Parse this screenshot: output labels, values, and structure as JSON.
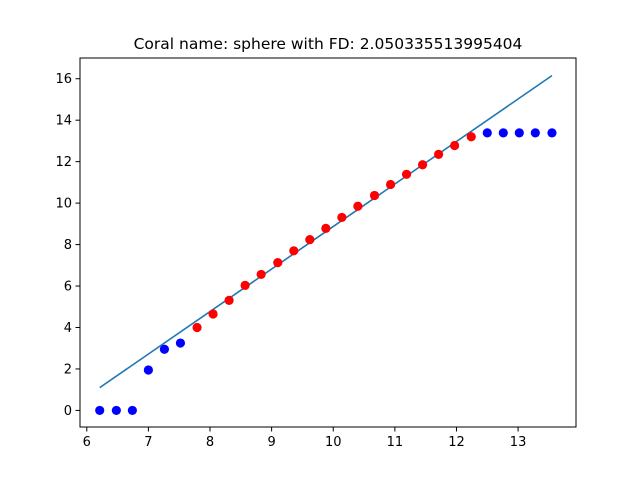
{
  "chart_data": {
    "type": "scatter",
    "title": "Coral name: sphere with FD: 2.050335513995404",
    "xlabel": "",
    "ylabel": "",
    "xlim": [
      5.89,
      13.94
    ],
    "ylim": [
      -0.8,
      17.0
    ],
    "xticks": [
      6,
      7,
      8,
      9,
      10,
      11,
      12,
      13
    ],
    "yticks": [
      0,
      2,
      4,
      6,
      8,
      10,
      12,
      14,
      16
    ],
    "grid": false,
    "colors": {
      "excluded_points": "#0000ff",
      "fitted_points": "#ff0000",
      "fit_line": "#1f77b4",
      "axes": "#000000"
    },
    "series": [
      {
        "kind": "points",
        "color": "#0000ff",
        "x": [
          6.21,
          6.48,
          6.74,
          7.0,
          7.26,
          7.52,
          12.5,
          12.76,
          13.02,
          13.28,
          13.55
        ],
        "y": [
          0.0,
          0.0,
          0.0,
          1.95,
          2.95,
          3.25,
          13.39,
          13.39,
          13.39,
          13.39,
          13.39
        ]
      },
      {
        "kind": "points",
        "color": "#ff0000",
        "x": [
          7.79,
          8.05,
          8.31,
          8.57,
          8.83,
          9.1,
          9.36,
          9.62,
          9.88,
          10.14,
          10.4,
          10.67,
          10.93,
          11.19,
          11.45,
          11.71,
          11.97,
          12.24
        ],
        "y": [
          4.0,
          4.65,
          5.31,
          6.03,
          6.56,
          7.13,
          7.7,
          8.24,
          8.78,
          9.31,
          9.85,
          10.37,
          10.9,
          11.39,
          11.85,
          12.35,
          12.78,
          13.2
        ]
      },
      {
        "kind": "line",
        "color": "#1f77b4",
        "x": [
          6.21,
          13.55
        ],
        "y": [
          1.1,
          16.15
        ]
      }
    ]
  }
}
